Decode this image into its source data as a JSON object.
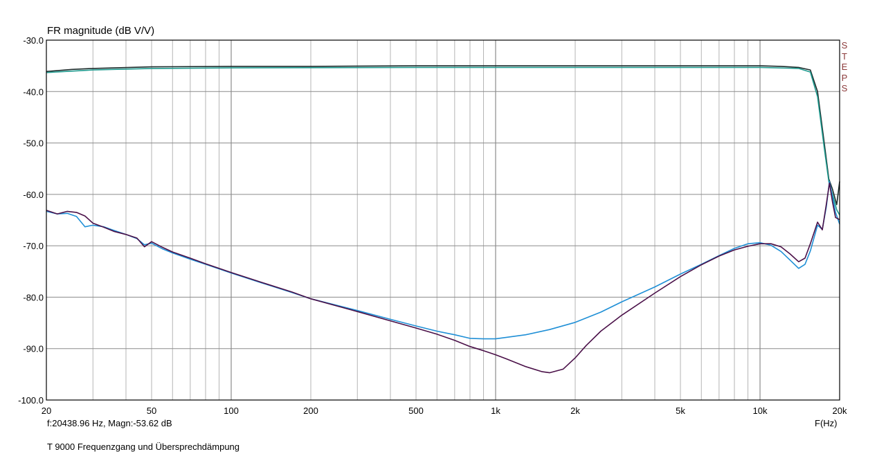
{
  "chart_data": {
    "type": "line",
    "title": "FR magnitude (dB V/V)",
    "xlabel": "F(Hz)",
    "x_scale": "log",
    "xlim": [
      20,
      20000
    ],
    "ylim": [
      -100,
      -30
    ],
    "grid": true,
    "y_ticks": [
      "-30.0",
      "-40.0",
      "-50.0",
      "-60.0",
      "-70.0",
      "-80.0",
      "-90.0",
      "-100.0"
    ],
    "x_ticks": [
      {
        "v": 20,
        "t": "20"
      },
      {
        "v": 50,
        "t": "50"
      },
      {
        "v": 100,
        "t": "100"
      },
      {
        "v": 200,
        "t": "200"
      },
      {
        "v": 500,
        "t": "500"
      },
      {
        "v": 1000,
        "t": "1k"
      },
      {
        "v": 2000,
        "t": "2k"
      },
      {
        "v": 5000,
        "t": "5k"
      },
      {
        "v": 10000,
        "t": "10k"
      },
      {
        "v": 20000,
        "t": "20k"
      }
    ],
    "series": [
      {
        "color": "#1a2a2a",
        "points": [
          [
            20,
            -36.1
          ],
          [
            25,
            -35.7
          ],
          [
            30,
            -35.5
          ],
          [
            50,
            -35.2
          ],
          [
            100,
            -35.1
          ],
          [
            200,
            -35.1
          ],
          [
            500,
            -35.0
          ],
          [
            1000,
            -35.0
          ],
          [
            5000,
            -35.0
          ],
          [
            10000,
            -35.0
          ],
          [
            12000,
            -35.1
          ],
          [
            14000,
            -35.3
          ],
          [
            15500,
            -35.8
          ],
          [
            16500,
            -40
          ],
          [
            17500,
            -50
          ],
          [
            18200,
            -57
          ],
          [
            18800,
            -59
          ],
          [
            19500,
            -62
          ],
          [
            20000,
            -57.5
          ]
        ]
      },
      {
        "color": "#1e9a8e",
        "points": [
          [
            20,
            -36.3
          ],
          [
            30,
            -35.8
          ],
          [
            50,
            -35.5
          ],
          [
            100,
            -35.4
          ],
          [
            500,
            -35.3
          ],
          [
            1000,
            -35.3
          ],
          [
            5000,
            -35.3
          ],
          [
            10000,
            -35.3
          ],
          [
            14000,
            -35.5
          ],
          [
            15500,
            -36.2
          ],
          [
            16500,
            -41
          ],
          [
            17500,
            -51
          ],
          [
            18200,
            -57.5
          ],
          [
            18800,
            -60
          ],
          [
            19500,
            -63
          ],
          [
            20000,
            -64
          ]
        ]
      },
      {
        "color": "#1f8fd6",
        "points": [
          [
            20,
            -63.3
          ],
          [
            22,
            -63.8
          ],
          [
            24,
            -63.7
          ],
          [
            26,
            -64.3
          ],
          [
            28,
            -66.3
          ],
          [
            30,
            -66.0
          ],
          [
            33,
            -66.3
          ],
          [
            36,
            -67.0
          ],
          [
            40,
            -67.8
          ],
          [
            44,
            -68.6
          ],
          [
            47,
            -69.8
          ],
          [
            50,
            -69.5
          ],
          [
            55,
            -70.6
          ],
          [
            60,
            -71.4
          ],
          [
            70,
            -72.6
          ],
          [
            80,
            -73.6
          ],
          [
            100,
            -75.3
          ],
          [
            130,
            -77.2
          ],
          [
            170,
            -79.1
          ],
          [
            200,
            -80.3
          ],
          [
            300,
            -82.6
          ],
          [
            400,
            -84.3
          ],
          [
            500,
            -85.6
          ],
          [
            600,
            -86.6
          ],
          [
            700,
            -87.3
          ],
          [
            800,
            -88.0
          ],
          [
            900,
            -88.1
          ],
          [
            1000,
            -88.1
          ],
          [
            1100,
            -87.8
          ],
          [
            1300,
            -87.3
          ],
          [
            1600,
            -86.3
          ],
          [
            2000,
            -84.9
          ],
          [
            2500,
            -82.9
          ],
          [
            3000,
            -80.9
          ],
          [
            4000,
            -78.0
          ],
          [
            5000,
            -75.5
          ],
          [
            6000,
            -73.6
          ],
          [
            7000,
            -71.9
          ],
          [
            8000,
            -70.5
          ],
          [
            9000,
            -69.6
          ],
          [
            10000,
            -69.4
          ],
          [
            11000,
            -69.9
          ],
          [
            12000,
            -71.1
          ],
          [
            13000,
            -72.8
          ],
          [
            14000,
            -74.4
          ],
          [
            14800,
            -73.6
          ],
          [
            15500,
            -71.0
          ],
          [
            16500,
            -66.0
          ],
          [
            17200,
            -66.8
          ],
          [
            17800,
            -62.5
          ],
          [
            18300,
            -57.5
          ],
          [
            18800,
            -60.5
          ],
          [
            19300,
            -63.5
          ],
          [
            20000,
            -65.8
          ]
        ]
      },
      {
        "color": "#4a1048",
        "points": [
          [
            20,
            -63.1
          ],
          [
            22,
            -63.8
          ],
          [
            24,
            -63.3
          ],
          [
            26,
            -63.5
          ],
          [
            28,
            -64.2
          ],
          [
            30,
            -65.6
          ],
          [
            33,
            -66.4
          ],
          [
            36,
            -67.2
          ],
          [
            40,
            -67.8
          ],
          [
            44,
            -68.5
          ],
          [
            47,
            -70.2
          ],
          [
            50,
            -69.2
          ],
          [
            55,
            -70.3
          ],
          [
            60,
            -71.2
          ],
          [
            70,
            -72.4
          ],
          [
            80,
            -73.5
          ],
          [
            100,
            -75.2
          ],
          [
            130,
            -77.1
          ],
          [
            170,
            -79.0
          ],
          [
            200,
            -80.3
          ],
          [
            300,
            -82.8
          ],
          [
            400,
            -84.6
          ],
          [
            500,
            -86.0
          ],
          [
            600,
            -87.2
          ],
          [
            700,
            -88.4
          ],
          [
            800,
            -89.6
          ],
          [
            900,
            -90.4
          ],
          [
            1000,
            -91.2
          ],
          [
            1100,
            -92.0
          ],
          [
            1300,
            -93.5
          ],
          [
            1500,
            -94.5
          ],
          [
            1600,
            -94.7
          ],
          [
            1800,
            -94.0
          ],
          [
            2000,
            -91.8
          ],
          [
            2200,
            -89.4
          ],
          [
            2500,
            -86.6
          ],
          [
            3000,
            -83.5
          ],
          [
            4000,
            -79.2
          ],
          [
            5000,
            -76.0
          ],
          [
            6000,
            -73.7
          ],
          [
            7000,
            -72.0
          ],
          [
            8000,
            -70.8
          ],
          [
            9000,
            -70.1
          ],
          [
            10000,
            -69.6
          ],
          [
            11000,
            -69.6
          ],
          [
            12000,
            -70.2
          ],
          [
            13000,
            -71.6
          ],
          [
            14000,
            -73.1
          ],
          [
            14800,
            -72.4
          ],
          [
            15500,
            -69.6
          ],
          [
            16500,
            -65.4
          ],
          [
            17200,
            -66.9
          ],
          [
            17800,
            -62.0
          ],
          [
            18300,
            -57.8
          ],
          [
            18800,
            -61.5
          ],
          [
            19300,
            -64.5
          ],
          [
            20000,
            -64.9
          ]
        ]
      }
    ]
  },
  "readout": "f:20438.96 Hz, Magn:-53.62 dB",
  "caption": "T 9000 Frequenzgang und Übersprechdämpung",
  "side_label": [
    "S",
    "T",
    "E",
    "P",
    "S"
  ]
}
